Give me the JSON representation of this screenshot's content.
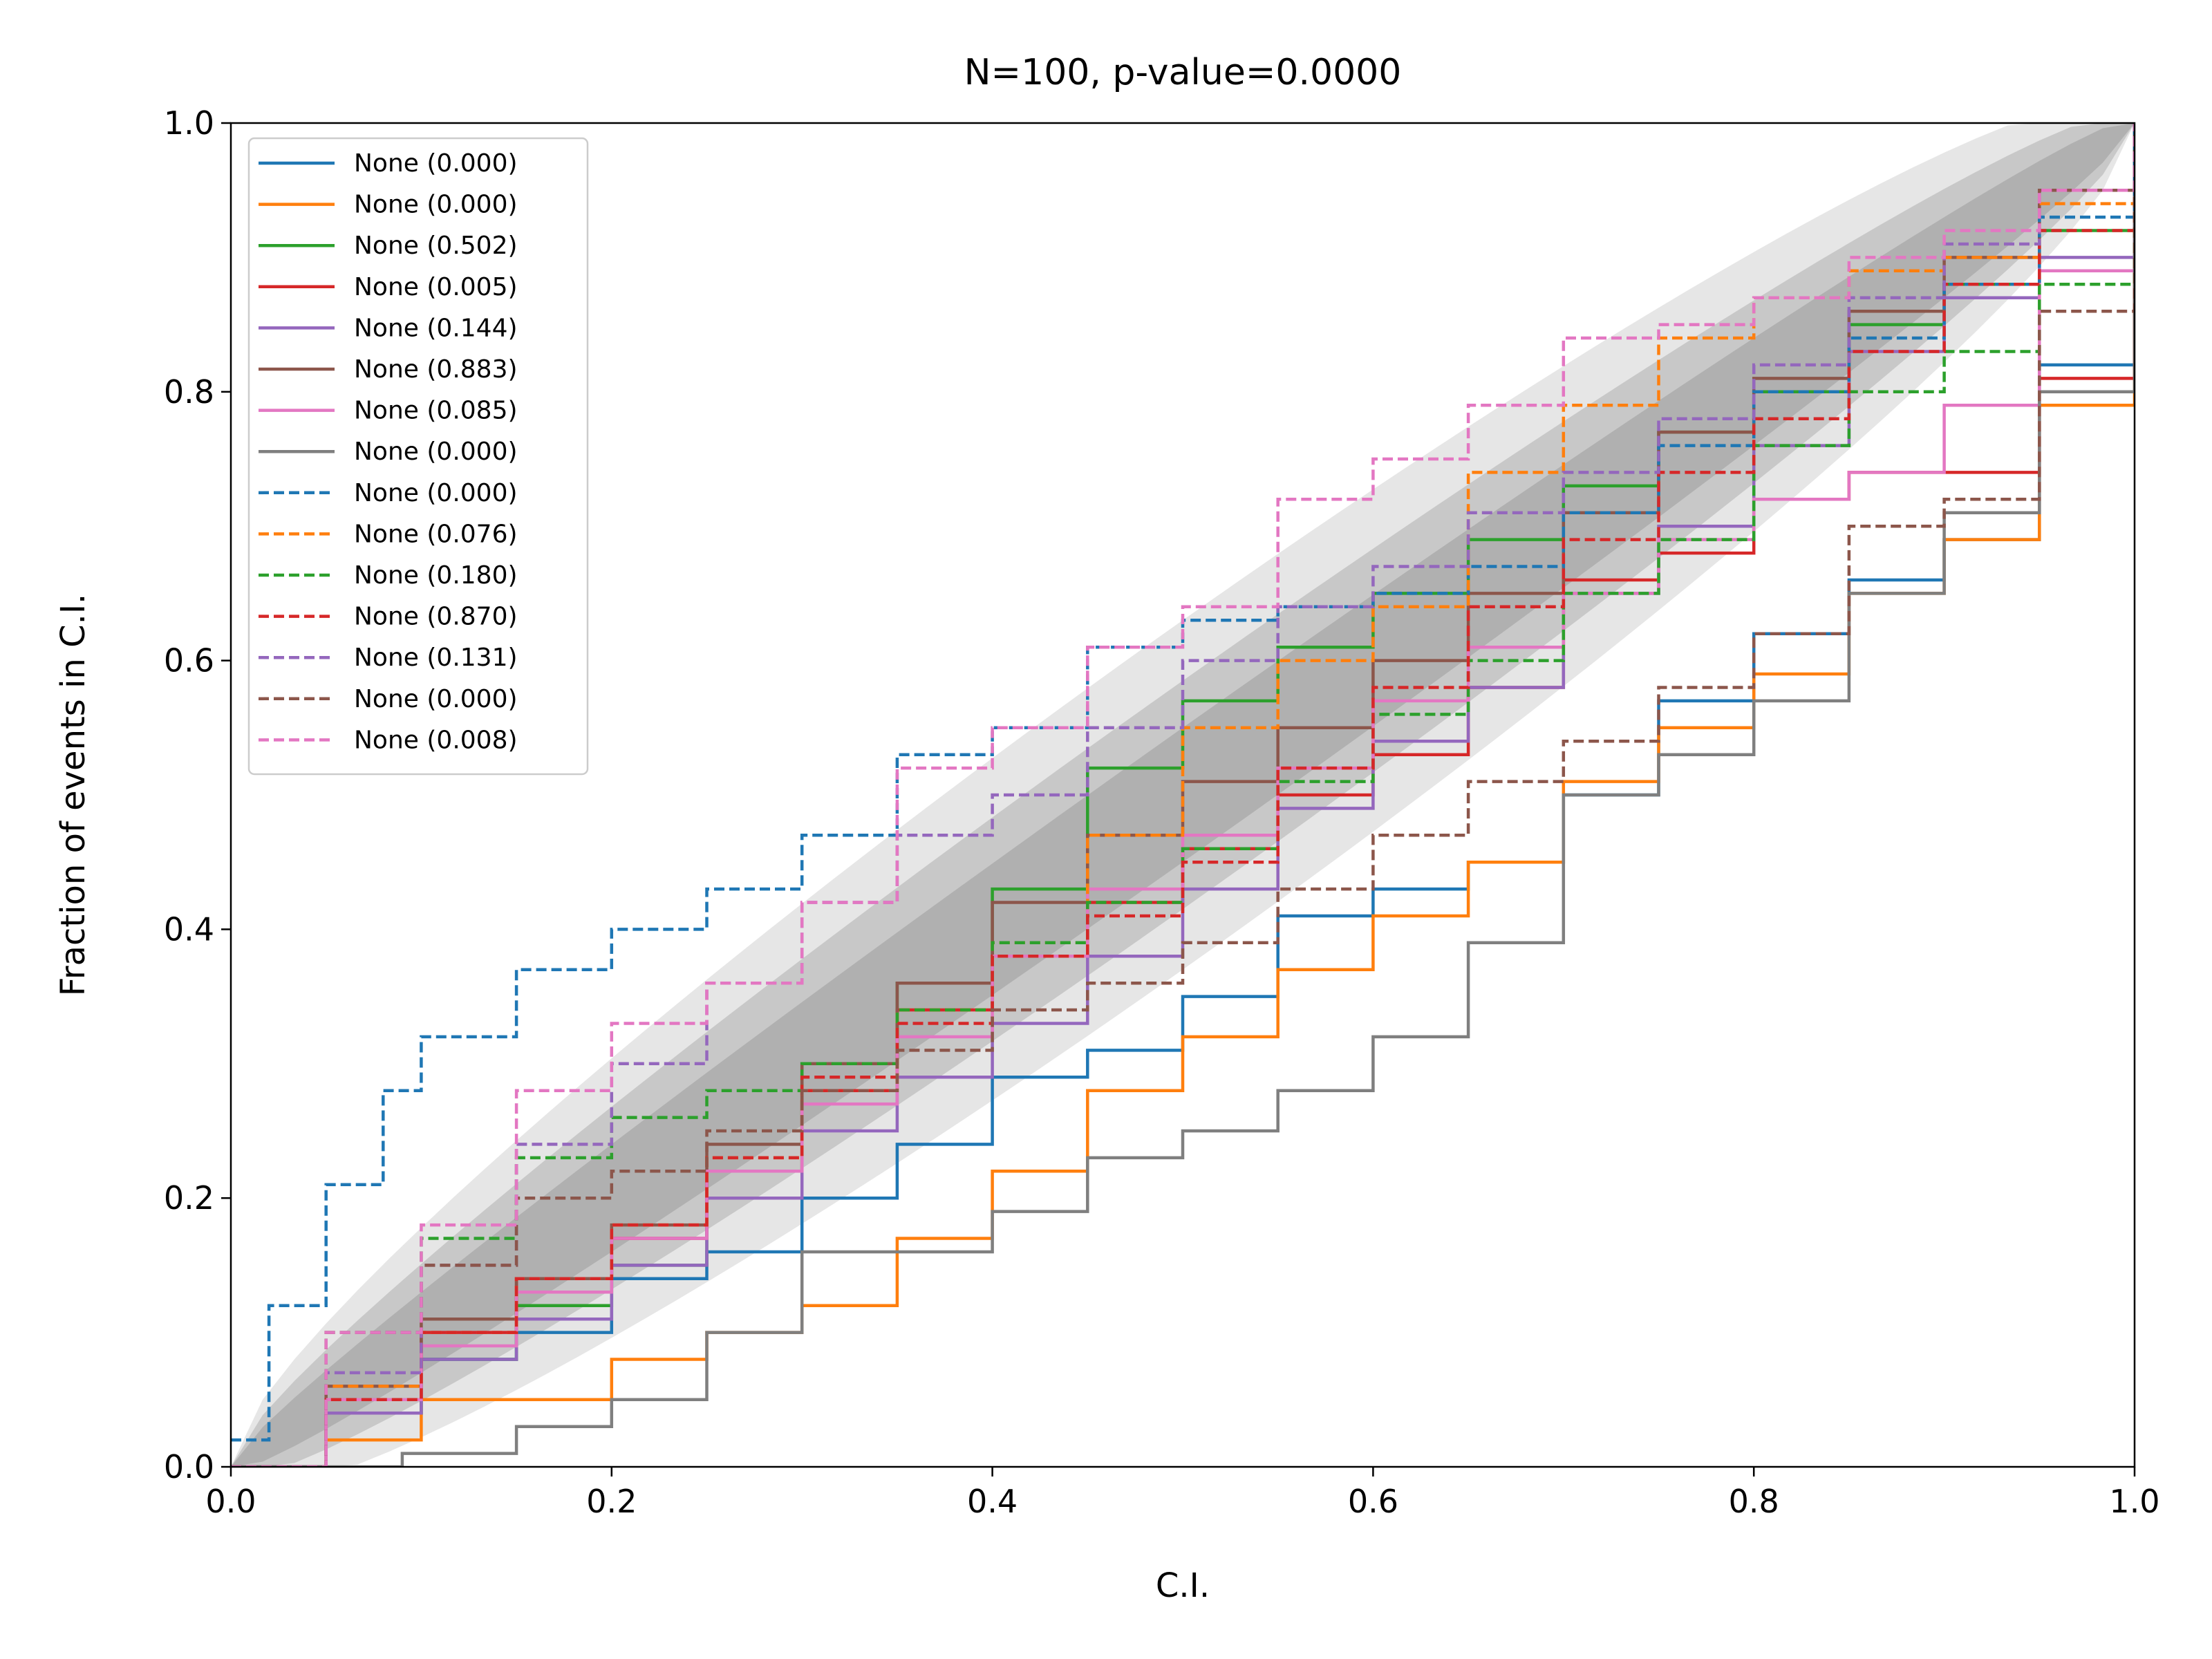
{
  "chart_data": {
    "type": "line",
    "title": "N=100, p-value=0.0000",
    "xlabel": "C.I.",
    "ylabel": "Fraction of events in C.I.",
    "xlim": [
      0.0,
      1.0
    ],
    "ylim": [
      0.0,
      1.0
    ],
    "xticks": [
      "0.0",
      "0.2",
      "0.4",
      "0.6",
      "0.8",
      "1.0"
    ],
    "yticks": [
      "0.0",
      "0.2",
      "0.4",
      "0.6",
      "0.8",
      "1.0"
    ],
    "grid": false,
    "legend_position": "upper left",
    "confidence_bands": [
      {
        "name": "inner band (shaded)",
        "color": "#b0b0b0",
        "half_width_max": 0.05
      },
      {
        "name": "middle band (shaded)",
        "color": "#c8c8c8",
        "half_width_max": 0.085
      },
      {
        "name": "outer band (shaded)",
        "color": "#e6e6e6",
        "half_width_max": 0.13
      }
    ],
    "series": [
      {
        "name": "None (0.000)",
        "color": "#1f77b4",
        "dash": "solid",
        "x": [
          0,
          0.05,
          0.1,
          0.15,
          0.2,
          0.25,
          0.3,
          0.35,
          0.4,
          0.45,
          0.5,
          0.55,
          0.6,
          0.65,
          0.7,
          0.75,
          0.8,
          0.85,
          0.9,
          0.95,
          1.0
        ],
        "y": [
          0,
          0.04,
          0.08,
          0.1,
          0.14,
          0.16,
          0.2,
          0.24,
          0.29,
          0.31,
          0.35,
          0.41,
          0.43,
          0.45,
          0.5,
          0.57,
          0.62,
          0.66,
          0.69,
          0.82,
          1.0
        ]
      },
      {
        "name": "None (0.000)",
        "color": "#ff7f0e",
        "dash": "solid",
        "x": [
          0,
          0.05,
          0.1,
          0.15,
          0.2,
          0.25,
          0.3,
          0.35,
          0.4,
          0.45,
          0.5,
          0.55,
          0.6,
          0.65,
          0.7,
          0.75,
          0.8,
          0.85,
          0.9,
          0.95,
          1.0
        ],
        "y": [
          0,
          0.02,
          0.05,
          0.05,
          0.08,
          0.1,
          0.12,
          0.17,
          0.22,
          0.28,
          0.32,
          0.37,
          0.41,
          0.45,
          0.51,
          0.55,
          0.59,
          0.65,
          0.69,
          0.79,
          0.96
        ]
      },
      {
        "name": "None (0.502)",
        "color": "#2ca02c",
        "dash": "solid",
        "x": [
          0,
          0.05,
          0.1,
          0.15,
          0.2,
          0.25,
          0.3,
          0.35,
          0.4,
          0.45,
          0.5,
          0.55,
          0.6,
          0.65,
          0.7,
          0.75,
          0.8,
          0.85,
          0.9,
          0.95,
          1.0
        ],
        "y": [
          0,
          0.04,
          0.08,
          0.12,
          0.15,
          0.22,
          0.3,
          0.36,
          0.43,
          0.52,
          0.57,
          0.61,
          0.65,
          0.69,
          0.73,
          0.77,
          0.8,
          0.85,
          0.88,
          0.92,
          0.98
        ]
      },
      {
        "name": "None (0.005)",
        "color": "#d62728",
        "dash": "solid",
        "x": [
          0,
          0.05,
          0.1,
          0.15,
          0.2,
          0.25,
          0.3,
          0.35,
          0.4,
          0.45,
          0.5,
          0.55,
          0.6,
          0.65,
          0.7,
          0.75,
          0.8,
          0.85,
          0.9,
          0.95,
          1.0
        ],
        "y": [
          0,
          0.05,
          0.1,
          0.14,
          0.17,
          0.22,
          0.28,
          0.34,
          0.38,
          0.42,
          0.46,
          0.5,
          0.53,
          0.58,
          0.66,
          0.68,
          0.72,
          0.74,
          0.74,
          0.81,
          0.95
        ]
      },
      {
        "name": "None (0.144)",
        "color": "#9467bd",
        "dash": "solid",
        "x": [
          0,
          0.05,
          0.1,
          0.15,
          0.2,
          0.25,
          0.3,
          0.35,
          0.4,
          0.45,
          0.5,
          0.55,
          0.6,
          0.65,
          0.7,
          0.75,
          0.8,
          0.85,
          0.9,
          0.95,
          1.0
        ],
        "y": [
          0,
          0.04,
          0.08,
          0.11,
          0.15,
          0.2,
          0.25,
          0.29,
          0.33,
          0.38,
          0.43,
          0.49,
          0.54,
          0.58,
          0.65,
          0.7,
          0.76,
          0.83,
          0.87,
          0.9,
          0.97
        ]
      },
      {
        "name": "None (0.883)",
        "color": "#8c564b",
        "dash": "solid",
        "x": [
          0,
          0.05,
          0.1,
          0.15,
          0.2,
          0.25,
          0.3,
          0.35,
          0.4,
          0.45,
          0.5,
          0.55,
          0.6,
          0.65,
          0.7,
          0.75,
          0.8,
          0.85,
          0.9,
          0.95,
          1.0
        ],
        "y": [
          0,
          0.06,
          0.11,
          0.14,
          0.18,
          0.24,
          0.3,
          0.36,
          0.42,
          0.47,
          0.51,
          0.55,
          0.6,
          0.65,
          0.71,
          0.77,
          0.81,
          0.86,
          0.9,
          0.95,
          1.0
        ]
      },
      {
        "name": "None (0.085)",
        "color": "#e377c2",
        "dash": "solid",
        "x": [
          0,
          0.05,
          0.1,
          0.15,
          0.2,
          0.25,
          0.3,
          0.35,
          0.4,
          0.45,
          0.5,
          0.55,
          0.6,
          0.65,
          0.7,
          0.75,
          0.8,
          0.85,
          0.9,
          0.95,
          1.0
        ],
        "y": [
          0,
          0.05,
          0.09,
          0.13,
          0.17,
          0.22,
          0.27,
          0.32,
          0.38,
          0.43,
          0.47,
          0.52,
          0.57,
          0.61,
          0.65,
          0.69,
          0.72,
          0.74,
          0.79,
          0.89,
          0.97
        ]
      },
      {
        "name": "None (0.000)",
        "color": "#7f7f7f",
        "dash": "solid",
        "x": [
          0,
          0.05,
          0.09,
          0.15,
          0.2,
          0.25,
          0.3,
          0.35,
          0.4,
          0.45,
          0.5,
          0.55,
          0.6,
          0.65,
          0.7,
          0.75,
          0.8,
          0.85,
          0.9,
          0.95,
          1.0
        ],
        "y": [
          0,
          0,
          0.01,
          0.03,
          0.05,
          0.1,
          0.16,
          0.16,
          0.19,
          0.23,
          0.25,
          0.28,
          0.32,
          0.39,
          0.5,
          0.53,
          0.57,
          0.65,
          0.71,
          0.8,
          0.95
        ]
      },
      {
        "name": "None (0.000)",
        "color": "#1f77b4",
        "dash": "dashed",
        "x": [
          0,
          0.02,
          0.05,
          0.08,
          0.1,
          0.15,
          0.2,
          0.25,
          0.3,
          0.35,
          0.4,
          0.45,
          0.5,
          0.55,
          0.6,
          0.65,
          0.7,
          0.75,
          0.8,
          0.85,
          0.9,
          0.95,
          1.0
        ],
        "y": [
          0.02,
          0.12,
          0.21,
          0.28,
          0.32,
          0.37,
          0.4,
          0.43,
          0.47,
          0.53,
          0.55,
          0.61,
          0.63,
          0.64,
          0.65,
          0.67,
          0.71,
          0.76,
          0.8,
          0.84,
          0.88,
          0.93,
          1.0
        ]
      },
      {
        "name": "None (0.076)",
        "color": "#ff7f0e",
        "dash": "dashed",
        "x": [
          0,
          0.05,
          0.1,
          0.15,
          0.2,
          0.25,
          0.3,
          0.35,
          0.4,
          0.45,
          0.5,
          0.55,
          0.6,
          0.65,
          0.7,
          0.75,
          0.8,
          0.85,
          0.9,
          0.95,
          1.0
        ],
        "y": [
          0,
          0.06,
          0.1,
          0.14,
          0.18,
          0.23,
          0.28,
          0.34,
          0.39,
          0.47,
          0.55,
          0.6,
          0.64,
          0.74,
          0.79,
          0.84,
          0.87,
          0.89,
          0.9,
          0.94,
          0.99
        ]
      },
      {
        "name": "None (0.180)",
        "color": "#2ca02c",
        "dash": "dashed",
        "x": [
          0,
          0.05,
          0.1,
          0.15,
          0.2,
          0.25,
          0.3,
          0.35,
          0.4,
          0.45,
          0.5,
          0.55,
          0.6,
          0.65,
          0.7,
          0.75,
          0.8,
          0.85,
          0.9,
          0.95,
          1.0
        ],
        "y": [
          0,
          0.1,
          0.17,
          0.23,
          0.26,
          0.28,
          0.3,
          0.34,
          0.39,
          0.42,
          0.46,
          0.51,
          0.56,
          0.6,
          0.65,
          0.69,
          0.76,
          0.8,
          0.83,
          0.88,
          0.97
        ]
      },
      {
        "name": "None (0.870)",
        "color": "#d62728",
        "dash": "dashed",
        "x": [
          0,
          0.05,
          0.1,
          0.15,
          0.2,
          0.25,
          0.3,
          0.35,
          0.4,
          0.45,
          0.5,
          0.55,
          0.6,
          0.65,
          0.7,
          0.75,
          0.8,
          0.85,
          0.9,
          0.95,
          1.0
        ],
        "y": [
          0,
          0.05,
          0.1,
          0.14,
          0.18,
          0.23,
          0.29,
          0.33,
          0.38,
          0.41,
          0.45,
          0.52,
          0.58,
          0.64,
          0.69,
          0.74,
          0.78,
          0.83,
          0.88,
          0.92,
          1.0
        ]
      },
      {
        "name": "None (0.131)",
        "color": "#9467bd",
        "dash": "dashed",
        "x": [
          0,
          0.05,
          0.1,
          0.15,
          0.2,
          0.25,
          0.3,
          0.35,
          0.4,
          0.45,
          0.5,
          0.55,
          0.6,
          0.65,
          0.7,
          0.75,
          0.8,
          0.85,
          0.9,
          0.95,
          1.0
        ],
        "y": [
          0,
          0.07,
          0.15,
          0.24,
          0.3,
          0.36,
          0.42,
          0.47,
          0.5,
          0.55,
          0.6,
          0.64,
          0.67,
          0.71,
          0.74,
          0.78,
          0.82,
          0.87,
          0.91,
          0.95,
          1.0
        ]
      },
      {
        "name": "None (0.000)",
        "color": "#8c564b",
        "dash": "dashed",
        "x": [
          0,
          0.05,
          0.1,
          0.15,
          0.2,
          0.25,
          0.3,
          0.35,
          0.4,
          0.45,
          0.5,
          0.55,
          0.6,
          0.65,
          0.7,
          0.75,
          0.8,
          0.85,
          0.9,
          0.95,
          1.0
        ],
        "y": [
          0,
          0.1,
          0.15,
          0.2,
          0.22,
          0.25,
          0.28,
          0.31,
          0.34,
          0.36,
          0.39,
          0.43,
          0.47,
          0.51,
          0.54,
          0.58,
          0.62,
          0.7,
          0.72,
          0.86,
          0.97
        ]
      },
      {
        "name": "None (0.008)",
        "color": "#e377c2",
        "dash": "dashed",
        "x": [
          0,
          0.05,
          0.1,
          0.15,
          0.2,
          0.25,
          0.3,
          0.35,
          0.4,
          0.45,
          0.5,
          0.55,
          0.6,
          0.65,
          0.7,
          0.75,
          0.8,
          0.85,
          0.9,
          0.95,
          1.0
        ],
        "y": [
          0,
          0.1,
          0.18,
          0.28,
          0.33,
          0.36,
          0.42,
          0.52,
          0.55,
          0.61,
          0.64,
          0.72,
          0.75,
          0.79,
          0.84,
          0.85,
          0.87,
          0.9,
          0.92,
          0.95,
          1.0
        ]
      }
    ]
  }
}
